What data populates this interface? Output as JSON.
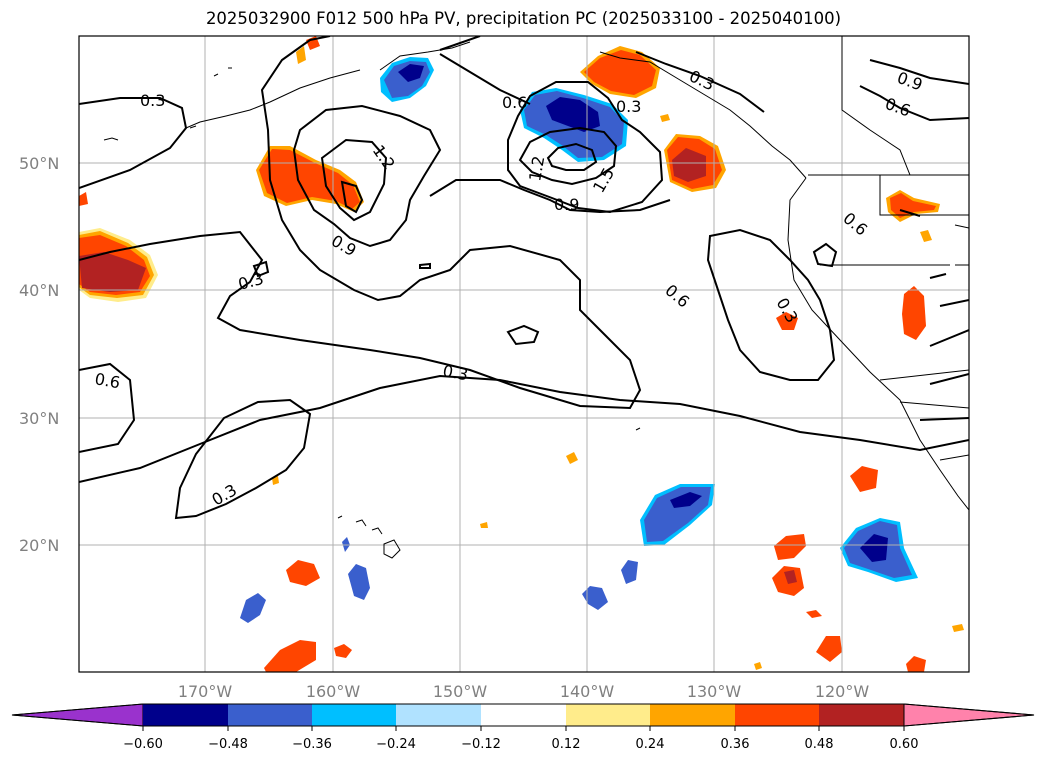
{
  "title": "2025032900 F012 500 hPa PV, precipitation PC (2025033100 - 2025040100)",
  "lat_labels": [
    "50°N",
    "40°N",
    "30°N",
    "20°N"
  ],
  "lon_labels": [
    "170°W",
    "160°W",
    "150°W",
    "140°W",
    "130°W",
    "120°W"
  ],
  "contour_labels": [
    "0.3",
    "0.6",
    "0.9",
    "1.2",
    "1.5"
  ],
  "colorbar": {
    "ticks": [
      "−0.60",
      "−0.48",
      "−0.36",
      "−0.24",
      "−0.12",
      "0.12",
      "0.24",
      "0.36",
      "0.48",
      "0.60"
    ],
    "colors": [
      "#9a32cd",
      "#00008b",
      "#3a5fcd",
      "#00bfff",
      "#b0e2ff",
      "#ffffff",
      "#ffec8b",
      "#ffa500",
      "#ff4500",
      "#b22222",
      "#ff82ab"
    ]
  },
  "colors": {
    "neg_strong": "#00008b",
    "neg_mid": "#3a5fcd",
    "neg_light": "#00bfff",
    "pos_light": "#ffec8b",
    "pos_mid": "#ffa500",
    "pos_strong": "#ff4500",
    "pos_max": "#b22222",
    "gridline": "#b0b0b0"
  }
}
